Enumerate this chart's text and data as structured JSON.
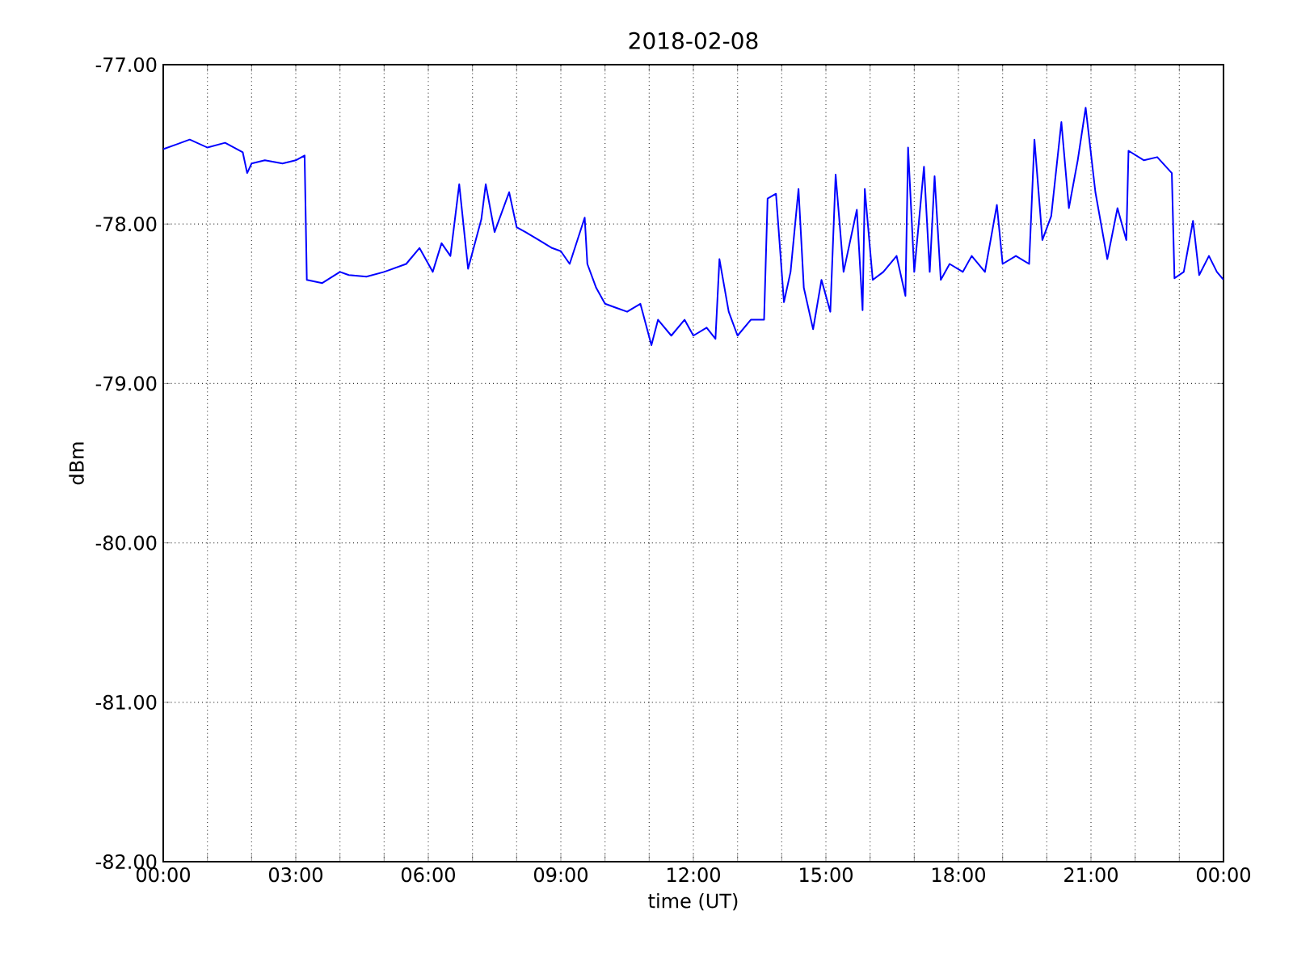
{
  "chart_data": {
    "type": "line",
    "title": "2018-02-08",
    "xlabel": "time (UT)",
    "ylabel": "dBm",
    "xlim": [
      0,
      24
    ],
    "ylim": [
      -82,
      -77
    ],
    "xticks": [
      {
        "value": 0,
        "label": "00:00"
      },
      {
        "value": 1,
        "label": null
      },
      {
        "value": 2,
        "label": null
      },
      {
        "value": 3,
        "label": "03:00"
      },
      {
        "value": 4,
        "label": null
      },
      {
        "value": 5,
        "label": null
      },
      {
        "value": 6,
        "label": "06:00"
      },
      {
        "value": 7,
        "label": null
      },
      {
        "value": 8,
        "label": null
      },
      {
        "value": 9,
        "label": "09:00"
      },
      {
        "value": 10,
        "label": null
      },
      {
        "value": 11,
        "label": null
      },
      {
        "value": 12,
        "label": "12:00"
      },
      {
        "value": 13,
        "label": null
      },
      {
        "value": 14,
        "label": null
      },
      {
        "value": 15,
        "label": "15:00"
      },
      {
        "value": 16,
        "label": null
      },
      {
        "value": 17,
        "label": null
      },
      {
        "value": 18,
        "label": "18:00"
      },
      {
        "value": 19,
        "label": null
      },
      {
        "value": 20,
        "label": null
      },
      {
        "value": 21,
        "label": "21:00"
      },
      {
        "value": 22,
        "label": null
      },
      {
        "value": 23,
        "label": null
      },
      {
        "value": 24,
        "label": "00:00"
      }
    ],
    "yticks": [
      {
        "value": -82,
        "label": "-82.00"
      },
      {
        "value": -81,
        "label": "-81.00"
      },
      {
        "value": -80,
        "label": "-80.00"
      },
      {
        "value": -79,
        "label": "-79.00"
      },
      {
        "value": -78,
        "label": "-78.00"
      },
      {
        "value": -77,
        "label": "-77.00"
      }
    ],
    "grid": true,
    "marker": "none",
    "line_style": "solid",
    "series": [
      {
        "color": "#0000ff",
        "x": [
          0,
          0.3,
          0.6,
          1.0,
          1.4,
          1.8,
          1.9,
          2.0,
          2.3,
          2.7,
          3.0,
          3.2,
          3.25,
          3.6,
          4.0,
          4.2,
          4.6,
          5.0,
          5.5,
          5.8,
          6.1,
          6.3,
          6.5,
          6.7,
          6.9,
          7.2,
          7.3,
          7.5,
          7.83,
          8.0,
          8.2,
          8.5,
          8.8,
          9.0,
          9.2,
          9.54,
          9.6,
          9.8,
          10.0,
          10.5,
          10.8,
          11.05,
          11.2,
          11.5,
          11.8,
          12.0,
          12.3,
          12.5,
          12.59,
          12.8,
          13.0,
          13.3,
          13.6,
          13.68,
          13.87,
          14.05,
          14.2,
          14.38,
          14.5,
          14.71,
          14.9,
          15.1,
          15.22,
          15.4,
          15.7,
          15.83,
          15.88,
          16.06,
          16.3,
          16.6,
          16.8,
          16.86,
          17.0,
          17.22,
          17.35,
          17.46,
          17.6,
          17.8,
          18.1,
          18.3,
          18.6,
          18.87,
          19.0,
          19.3,
          19.6,
          19.72,
          19.9,
          20.1,
          20.33,
          20.5,
          20.7,
          20.88,
          21.1,
          21.37,
          21.6,
          21.8,
          21.85,
          22.2,
          22.5,
          22.83,
          22.89,
          23.1,
          23.31,
          23.45,
          23.67,
          23.85,
          24
        ],
        "values": [
          -77.53,
          -77.5,
          -77.47,
          -77.52,
          -77.49,
          -77.55,
          -77.68,
          -77.62,
          -77.6,
          -77.62,
          -77.6,
          -77.57,
          -78.35,
          -78.37,
          -78.3,
          -78.32,
          -78.33,
          -78.3,
          -78.25,
          -78.15,
          -78.3,
          -78.12,
          -78.2,
          -77.75,
          -78.28,
          -77.97,
          -77.75,
          -78.05,
          -77.8,
          -78.02,
          -78.05,
          -78.1,
          -78.15,
          -78.17,
          -78.25,
          -77.96,
          -78.25,
          -78.4,
          -78.5,
          -78.55,
          -78.5,
          -78.76,
          -78.6,
          -78.7,
          -78.6,
          -78.7,
          -78.65,
          -78.72,
          -78.22,
          -78.55,
          -78.7,
          -78.6,
          -78.6,
          -77.84,
          -77.81,
          -78.49,
          -78.3,
          -77.78,
          -78.4,
          -78.66,
          -78.35,
          -78.55,
          -77.69,
          -78.3,
          -77.91,
          -78.54,
          -77.78,
          -78.35,
          -78.3,
          -78.2,
          -78.45,
          -77.52,
          -78.3,
          -77.64,
          -78.3,
          -77.7,
          -78.35,
          -78.25,
          -78.3,
          -78.2,
          -78.3,
          -77.88,
          -78.25,
          -78.2,
          -78.25,
          -77.47,
          -78.1,
          -77.95,
          -77.36,
          -77.9,
          -77.6,
          -77.27,
          -77.8,
          -78.22,
          -77.9,
          -78.1,
          -77.54,
          -77.6,
          -77.58,
          -77.68,
          -78.34,
          -78.3,
          -77.98,
          -78.32,
          -78.2,
          -78.3,
          -78.35
        ]
      }
    ]
  }
}
